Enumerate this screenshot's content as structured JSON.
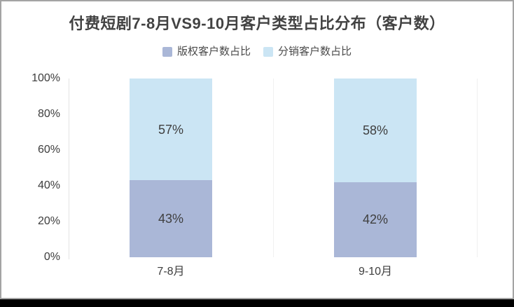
{
  "window": {
    "panel_background": "#ffffff",
    "frame_border_color": "#a4a4a4",
    "bottom_bar_color": "#000000"
  },
  "chart_data": {
    "type": "bar",
    "stacked": true,
    "title": "付费短剧7-8月VS9-10月客户类型占比分布（客户数）",
    "categories": [
      "7-8月",
      "9-10月"
    ],
    "series": [
      {
        "name": "版权客户数占比",
        "color": "#aab7d7",
        "values": [
          43,
          42
        ],
        "labels": [
          "43%",
          "42%"
        ]
      },
      {
        "name": "分销客户数占比",
        "color": "#cbe5f4",
        "values": [
          57,
          58
        ],
        "labels": [
          "57%",
          "58%"
        ]
      }
    ],
    "yticks": [
      "0%",
      "20%",
      "40%",
      "60%",
      "80%",
      "100%"
    ],
    "ylim": [
      0,
      100
    ],
    "legend_position": "top",
    "grid": "vertical category split lines only, no horizontal gridlines",
    "value_label_color": "#3f3f3f",
    "axis_label_color": "#3d3d3d"
  }
}
